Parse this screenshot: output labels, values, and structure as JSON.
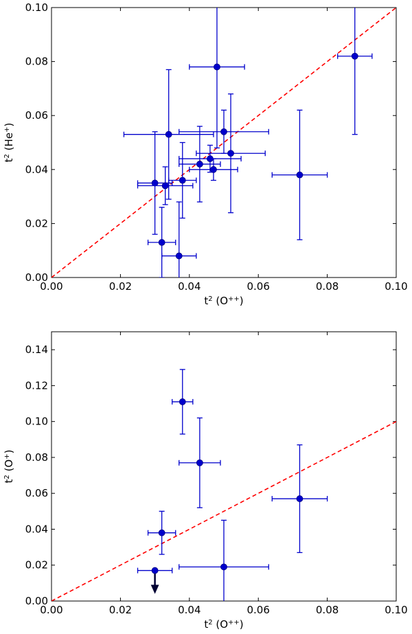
{
  "chart_data": [
    {
      "type": "scatter",
      "xlabel_base": "t",
      "xlabel_sup": "2",
      "xlabel_rest": " (O",
      "xlabel_ion_sup": "++",
      "xlabel_end": ")",
      "ylabel_base": "t",
      "ylabel_sup": "2",
      "ylabel_rest": " (He",
      "ylabel_ion_sup": "+",
      "ylabel_end": ")",
      "xlim": [
        0.0,
        0.1
      ],
      "ylim": [
        0.0,
        0.1
      ],
      "xticks": [
        "0.00",
        "0.02",
        "0.04",
        "0.06",
        "0.08",
        "0.10"
      ],
      "yticks": [
        "0.00",
        "0.02",
        "0.04",
        "0.06",
        "0.08",
        "0.10"
      ],
      "reference_line": "y = x (dashed red)",
      "points": [
        {
          "x": 0.03,
          "y": 0.035,
          "xerr": 0.005,
          "yerr": 0.019
        },
        {
          "x": 0.032,
          "y": 0.013,
          "xerr": 0.004,
          "yerr": 0.013
        },
        {
          "x": 0.033,
          "y": 0.034,
          "xerr": 0.008,
          "yerr": 0.007
        },
        {
          "x": 0.034,
          "y": 0.053,
          "xerr": 0.013,
          "yerr": 0.024
        },
        {
          "x": 0.037,
          "y": 0.008,
          "xerr": 0.005,
          "yerr": 0.02
        },
        {
          "x": 0.038,
          "y": 0.036,
          "xerr": 0.004,
          "yerr": 0.014
        },
        {
          "x": 0.043,
          "y": 0.042,
          "xerr": 0.006,
          "yerr": 0.014
        },
        {
          "x": 0.046,
          "y": 0.044,
          "xerr": 0.009,
          "yerr": 0.005
        },
        {
          "x": 0.047,
          "y": 0.04,
          "xerr": 0.007,
          "yerr": 0.004
        },
        {
          "x": 0.048,
          "y": 0.078,
          "xerr": 0.008,
          "yerr": 0.03
        },
        {
          "x": 0.05,
          "y": 0.054,
          "xerr": 0.013,
          "yerr": 0.008
        },
        {
          "x": 0.052,
          "y": 0.046,
          "xerr": 0.01,
          "yerr": 0.022
        },
        {
          "x": 0.072,
          "y": 0.038,
          "xerr": 0.008,
          "yerr": 0.024
        },
        {
          "x": 0.088,
          "y": 0.082,
          "xerr": 0.005,
          "yerr": 0.029
        }
      ],
      "upper_limits": []
    },
    {
      "type": "scatter",
      "xlabel_base": "t",
      "xlabel_sup": "2",
      "xlabel_rest": " (O",
      "xlabel_ion_sup": "++",
      "xlabel_end": ")",
      "ylabel_base": "t",
      "ylabel_sup": "2",
      "ylabel_rest": " (O",
      "ylabel_ion_sup": "+",
      "ylabel_end": ")",
      "xlim": [
        0.0,
        0.1
      ],
      "ylim": [
        0.0,
        0.15
      ],
      "xticks": [
        "0.00",
        "0.02",
        "0.04",
        "0.06",
        "0.08",
        "0.10"
      ],
      "yticks": [
        "0.00",
        "0.02",
        "0.04",
        "0.06",
        "0.08",
        "0.10",
        "0.12",
        "0.14"
      ],
      "reference_line": "y = x (dashed red)",
      "points": [
        {
          "x": 0.03,
          "y": 0.017,
          "xerr": 0.005,
          "yerr": 0.0
        },
        {
          "x": 0.032,
          "y": 0.038,
          "xerr": 0.004,
          "yerr": 0.012
        },
        {
          "x": 0.038,
          "y": 0.111,
          "xerr": 0.003,
          "yerr": 0.018
        },
        {
          "x": 0.043,
          "y": 0.077,
          "xerr": 0.006,
          "yerr": 0.025
        },
        {
          "x": 0.05,
          "y": 0.019,
          "xerr": 0.013,
          "yerr": 0.026
        },
        {
          "x": 0.072,
          "y": 0.057,
          "xerr": 0.008,
          "yerr": 0.03
        }
      ],
      "upper_limits": [
        0
      ]
    }
  ]
}
